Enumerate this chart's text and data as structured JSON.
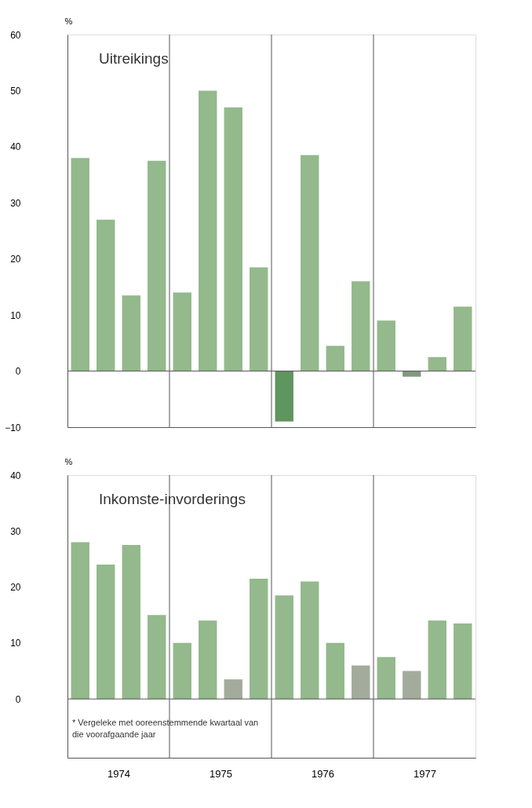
{
  "chart_data": [
    {
      "type": "bar",
      "title": "Uitreikings",
      "ylabel": "%",
      "x": [
        1973.625,
        1973.875,
        1974.125,
        1974.375,
        1974.625,
        1974.875,
        1975.125,
        1975.375,
        1975.625,
        1975.875,
        1976.125,
        1976.375,
        1976.625,
        1976.875,
        1977.125,
        1977.375
      ],
      "values": [
        38,
        27,
        13.5,
        37.5,
        14,
        50,
        47,
        18.5,
        -9,
        38.5,
        4.5,
        16,
        9,
        -1,
        2.5,
        11.5
      ],
      "colors": [
        "#93b98c",
        "#93b98c",
        "#93b98c",
        "#93b98c",
        "#93b98c",
        "#93b98c",
        "#93b98c",
        "#93b98c",
        "#5f955f",
        "#93b98c",
        "#93b98c",
        "#93b98c",
        "#93b98c",
        "#7f9a80",
        "#93b98c",
        "#93b98c"
      ],
      "xlim": [
        1973.5,
        1977.5
      ],
      "xticks": [
        1974,
        1975,
        1976,
        1977
      ],
      "ylim": [
        -10,
        60
      ],
      "yticks": [
        -10,
        0,
        10,
        20,
        30,
        40,
        50,
        60
      ],
      "ref_lines": [
        {
          "axis": "x",
          "value": 1974.5,
          "color": "#555555"
        },
        {
          "axis": "x",
          "value": 1975.5,
          "color": "#555555"
        },
        {
          "axis": "x",
          "value": 1976.5,
          "color": "#555555"
        },
        {
          "axis": "y",
          "value": 0,
          "color": "#555555"
        }
      ],
      "tick_labels": "y"
    },
    {
      "type": "bar",
      "title": "Inkomste-invorderings",
      "ylabel": "%",
      "x": [
        1973.625,
        1973.875,
        1974.125,
        1974.375,
        1974.625,
        1974.875,
        1975.125,
        1975.375,
        1975.625,
        1975.875,
        1976.125,
        1976.375,
        1976.625,
        1976.875,
        1977.125,
        1977.375
      ],
      "values": [
        28,
        24,
        27.5,
        15,
        10,
        14,
        3.5,
        21.5,
        18.5,
        21,
        10,
        6,
        7.5,
        5,
        14,
        13.5
      ],
      "colors": [
        "#93b98c",
        "#93b98c",
        "#93b98c",
        "#93b98c",
        "#93b98c",
        "#93b98c",
        "#a3ab9c",
        "#93b98c",
        "#93b98c",
        "#93b98c",
        "#93b98c",
        "#a3ab9c",
        "#93b98c",
        "#a3ab9c",
        "#93b98c",
        "#93b98c"
      ],
      "xlim": [
        1973.5,
        1977.5
      ],
      "xticks": [
        1974,
        1975,
        1976,
        1977
      ],
      "ylim": [
        -10.5,
        40
      ],
      "yticks": [
        0,
        10,
        20,
        30,
        40
      ],
      "ref_lines": [
        {
          "axis": "x",
          "value": 1974.5,
          "color": "#555555"
        },
        {
          "axis": "x",
          "value": 1975.5,
          "color": "#555555"
        },
        {
          "axis": "x",
          "value": 1976.5,
          "color": "#555555"
        },
        {
          "axis": "y",
          "value": 0,
          "color": "#555555"
        }
      ],
      "annotations": [
        "* Vergeleke met ooreenstemmende kwartaal van die voorafgaande jaar"
      ]
    }
  ]
}
